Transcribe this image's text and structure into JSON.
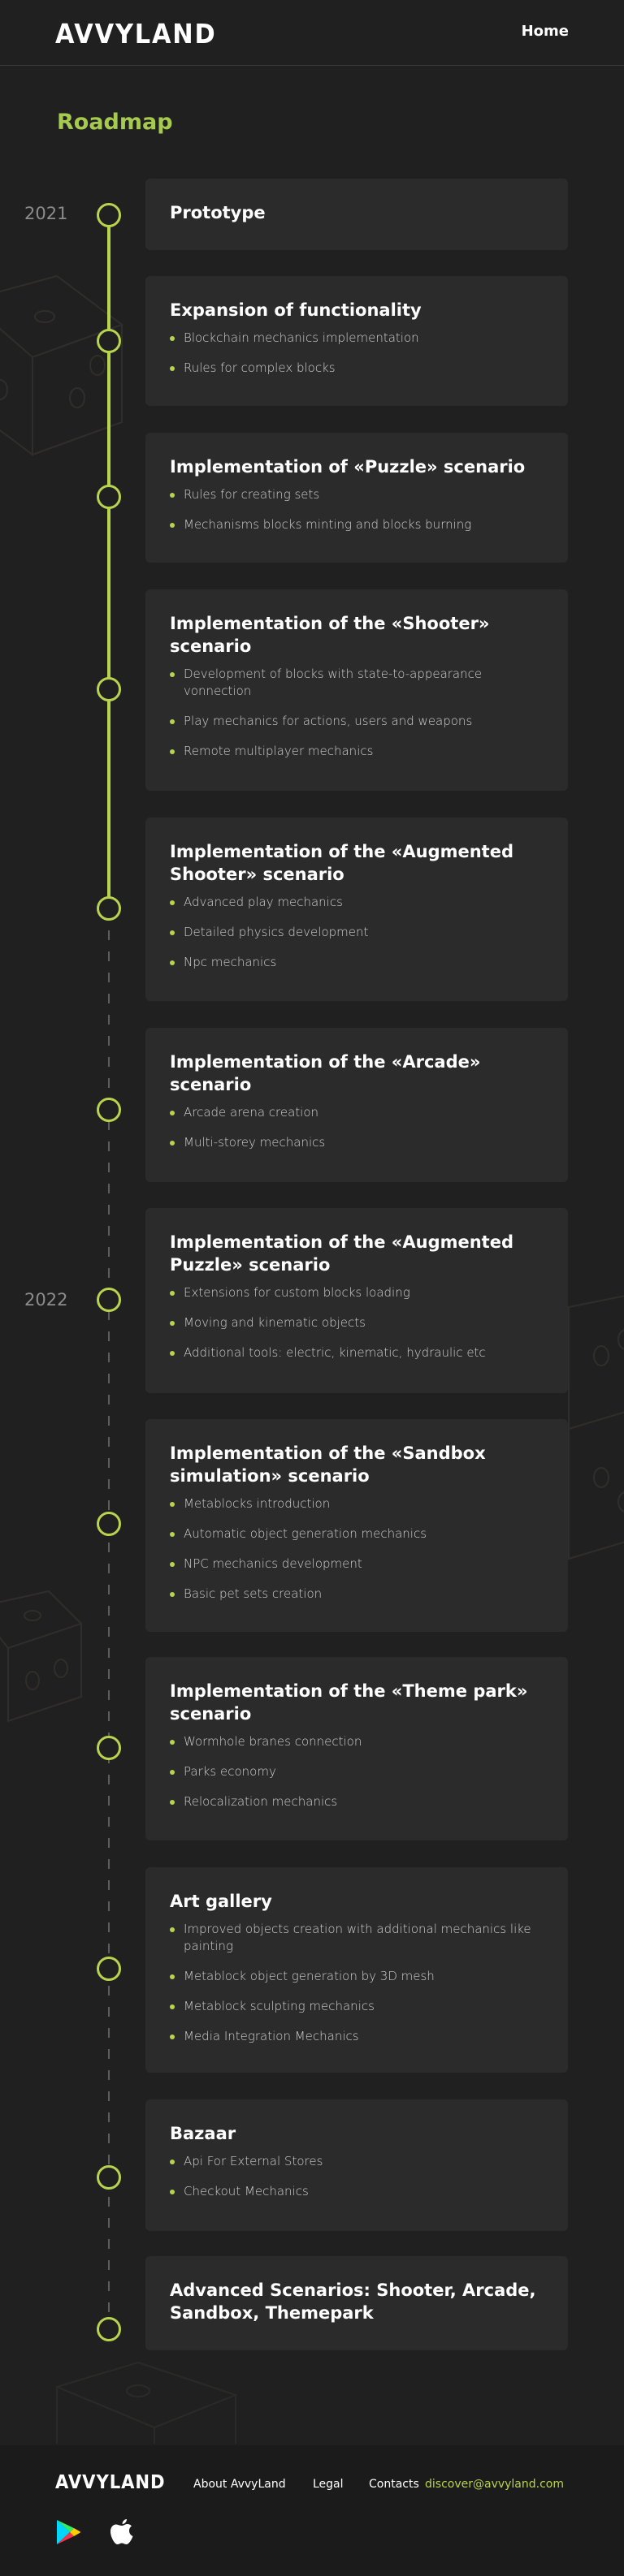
{
  "header": {
    "logo": "AVVYLAND",
    "nav_home": "Home"
  },
  "page": {
    "title": "Roadmap"
  },
  "years": [
    "2021",
    "2022"
  ],
  "milestones": [
    {
      "title": "Prototype",
      "items": []
    },
    {
      "title": "Expansion of functionality",
      "items": [
        "Blockchain mechanics implementation",
        "Rules for complex blocks"
      ]
    },
    {
      "title": "Implementation of  «Puzzle» scenario",
      "items": [
        "Rules for creating sets",
        "Mechanisms blocks minting and blocks burning"
      ]
    },
    {
      "title": "Implementation of the «Shooter» scenario",
      "items": [
        "Development of blocks with state-to-appearance vonnection",
        "Play mechanics for actions, users and weapons",
        "Remote multiplayer mechanics"
      ]
    },
    {
      "title": "Implementation of the «Augmented Shooter» scenario",
      "items": [
        "Advanced play mechanics",
        "Detailed physics development",
        "Npc mechanics"
      ]
    },
    {
      "title": "Implementation of the «Arcade» scenario",
      "items": [
        "Arcade arena creation",
        "Multi-storey mechanics"
      ]
    },
    {
      "title": "Implementation of the «Augmented Puzzle» scenario",
      "items": [
        "Extensions for custom blocks loading",
        "Moving and kinematic objects",
        "Additional tools: electric, kinematic, hydraulic etc"
      ]
    },
    {
      "title": "Implementation of the «Sandbox simulation» scenario",
      "items": [
        "Metablocks introduction",
        "Automatic object generation mechanics",
        "NPC mechanics development",
        "Basic pet sets creation"
      ]
    },
    {
      "title": "Implementation of the «Theme park» scenario",
      "items": [
        "Wormhole branes connection",
        "Parks economy",
        "Relocalization mechanics"
      ]
    },
    {
      "title": "Art gallery",
      "items": [
        "Improved objects creation with additional mechanics like painting",
        "Metablock object generation by 3D mesh",
        "Metablock sculpting mechanics",
        "Media Integration Mechanics"
      ]
    },
    {
      "title": "Bazaar",
      "items": [
        "Api For External Stores",
        "Checkout Mechanics"
      ]
    },
    {
      "title": "Advanced Scenarios: Shooter, Arcade, Sandbox, Themepark",
      "items": []
    }
  ],
  "footer": {
    "logo": "AVVYLAND",
    "about": "About AvvyLand",
    "legal": "Legal",
    "contacts_label": "Contacts",
    "contacts_email": "discover@avvyland.com",
    "icons": [
      "google-play-icon",
      "apple-icon"
    ]
  },
  "colors": {
    "background": "#212020",
    "card": "#2c2b2b",
    "accent": "#b8d34e",
    "title_accent": "#a6ca4f"
  }
}
